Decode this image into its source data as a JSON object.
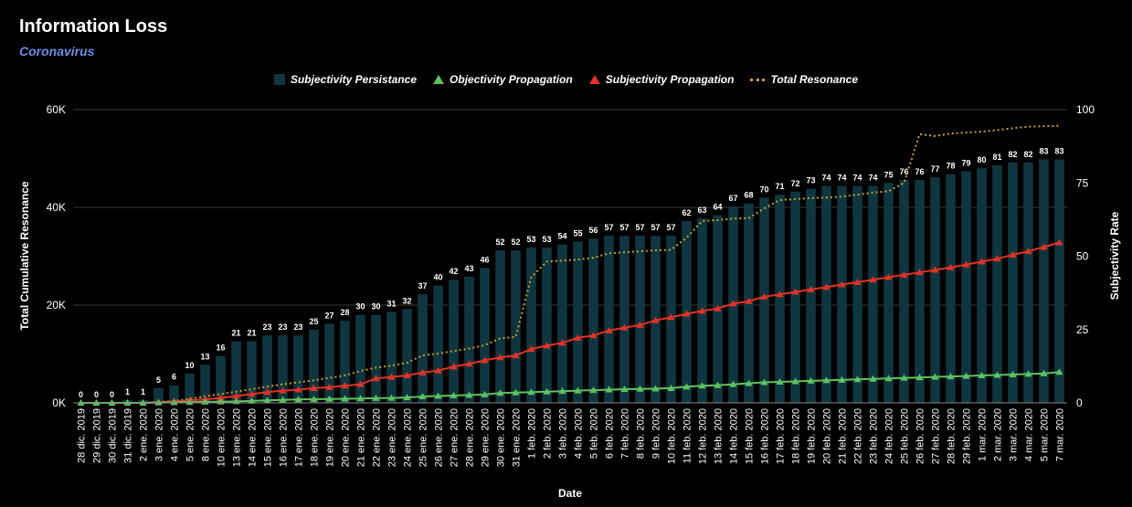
{
  "header": {
    "title": "Information Loss",
    "subtitle": "Coronavirus"
  },
  "legend": [
    {
      "label": "Subjectivity Persistance",
      "kind": "bar",
      "color": "#0f3640"
    },
    {
      "label": "Objectivity Propagation",
      "kind": "triangle",
      "color": "#5fc25e"
    },
    {
      "label": "Subjectivity Propagation",
      "kind": "triangle",
      "color": "#e53224"
    },
    {
      "label": "Total Resonance",
      "kind": "dotted",
      "color": "#c8a22a"
    }
  ],
  "chart_data": {
    "type": "bar",
    "xlabel": "Date",
    "ylabel_left": "Total Cumulative Resonance",
    "ylabel_right": "Subjectivity Rate",
    "ylim_left": [
      0,
      60000
    ],
    "ylim_right": [
      0,
      100
    ],
    "left_ticks": [
      "0K",
      "20K",
      "40K",
      "60K"
    ],
    "right_ticks": [
      "0",
      "25",
      "50",
      "75",
      "100"
    ],
    "grid": true,
    "legend_position": "top",
    "categories": [
      "28 dic. 2019",
      "29 dic. 2019",
      "30 dic. 2019",
      "31 dic. 2019",
      "2 ene. 2020",
      "3 ene. 2020",
      "4 ene. 2020",
      "5 ene. 2020",
      "8 ene. 2020",
      "10 ene. 2020",
      "13 ene. 2020",
      "14 ene. 2020",
      "15 ene. 2020",
      "16 ene. 2020",
      "17 ene. 2020",
      "18 ene. 2020",
      "19 ene. 2020",
      "20 ene. 2020",
      "21 ene. 2020",
      "22 ene. 2020",
      "23 ene. 2020",
      "24 ene. 2020",
      "25 ene. 2020",
      "26 ene. 2020",
      "27 ene. 2020",
      "28 ene. 2020",
      "29 ene. 2020",
      "30 ene. 2020",
      "31 ene. 2020",
      "1 feb. 2020",
      "2 feb. 2020",
      "3 feb. 2020",
      "4 feb. 2020",
      "5 feb. 2020",
      "6 feb. 2020",
      "7 feb. 2020",
      "8 feb. 2020",
      "9 feb. 2020",
      "10 feb. 2020",
      "11 feb. 2020",
      "12 feb. 2020",
      "13 feb. 2020",
      "14 feb. 2020",
      "15 feb. 2020",
      "16 feb. 2020",
      "17 feb. 2020",
      "18 feb. 2020",
      "19 feb. 2020",
      "20 feb. 2020",
      "21 feb. 2020",
      "22 feb. 2020",
      "23 feb. 2020",
      "24 feb. 2020",
      "25 feb. 2020",
      "26 feb. 2020",
      "27 feb. 2020",
      "28 feb. 2020",
      "29 feb. 2020",
      "1 mar. 2020",
      "2 mar. 2020",
      "3 mar. 2020",
      "4 mar. 2020",
      "5 mar. 2020",
      "7 mar. 2020"
    ],
    "series": [
      {
        "name": "Subjectivity Persistance",
        "axis": "right",
        "type": "bar",
        "values": [
          0,
          0,
          0,
          1,
          1,
          5,
          6,
          10,
          13,
          16,
          21,
          21,
          23,
          23,
          23,
          25,
          27,
          28,
          30,
          30,
          31,
          32,
          37,
          40,
          42,
          43,
          46,
          52,
          52,
          53,
          53,
          54,
          55,
          56,
          57,
          57,
          57,
          57,
          57,
          62,
          63,
          64,
          67,
          68,
          70,
          71,
          72,
          73,
          74,
          74,
          74,
          74,
          75,
          76,
          76,
          77,
          78,
          79,
          80,
          81,
          82,
          82,
          83,
          83
        ]
      },
      {
        "name": "Objectivity Propagation",
        "axis": "left",
        "type": "line",
        "values": [
          0,
          0,
          0,
          0,
          0,
          50,
          100,
          150,
          200,
          250,
          300,
          400,
          500,
          600,
          700,
          750,
          800,
          850,
          900,
          950,
          1000,
          1100,
          1300,
          1400,
          1500,
          1600,
          1700,
          2000,
          2100,
          2200,
          2300,
          2400,
          2500,
          2600,
          2700,
          2800,
          2850,
          2900,
          3000,
          3300,
          3500,
          3600,
          3800,
          4000,
          4200,
          4300,
          4400,
          4500,
          4600,
          4700,
          4800,
          4900,
          5000,
          5100,
          5200,
          5300,
          5400,
          5500,
          5600,
          5700,
          5800,
          5900,
          6000,
          6300
        ]
      },
      {
        "name": "Subjectivity Propagation",
        "axis": "left",
        "type": "line",
        "values": [
          0,
          0,
          0,
          0,
          0,
          150,
          300,
          500,
          700,
          1000,
          1400,
          1800,
          2200,
          2500,
          2700,
          3000,
          3200,
          3500,
          3800,
          5000,
          5300,
          5600,
          6200,
          6600,
          7400,
          8000,
          8700,
          9300,
          9700,
          11000,
          11700,
          12300,
          13300,
          13800,
          14800,
          15400,
          15900,
          16900,
          17500,
          18200,
          18800,
          19300,
          20300,
          20800,
          21700,
          22200,
          22700,
          23200,
          23700,
          24200,
          24700,
          25200,
          25700,
          26200,
          26700,
          27200,
          27700,
          28300,
          28900,
          29500,
          30300,
          31000,
          31900,
          32800
        ]
      },
      {
        "name": "Total Resonance",
        "axis": "left",
        "type": "dotted-line",
        "values": [
          0,
          0,
          0,
          0,
          0,
          200,
          400,
          800,
          1300,
          1800,
          2300,
          2800,
          3300,
          3800,
          4200,
          4600,
          5100,
          5600,
          6500,
          7200,
          7600,
          8200,
          9700,
          10100,
          10600,
          11100,
          11800,
          13200,
          13500,
          25700,
          28900,
          29100,
          29300,
          29700,
          30600,
          30800,
          31000,
          31200,
          31300,
          33800,
          37200,
          37400,
          37700,
          37800,
          39800,
          41500,
          41700,
          41900,
          42000,
          42200,
          42600,
          43000,
          43300,
          45000,
          55000,
          54600,
          55100,
          55300,
          55500,
          55800,
          56200,
          56500,
          56600,
          56700
        ]
      }
    ]
  }
}
